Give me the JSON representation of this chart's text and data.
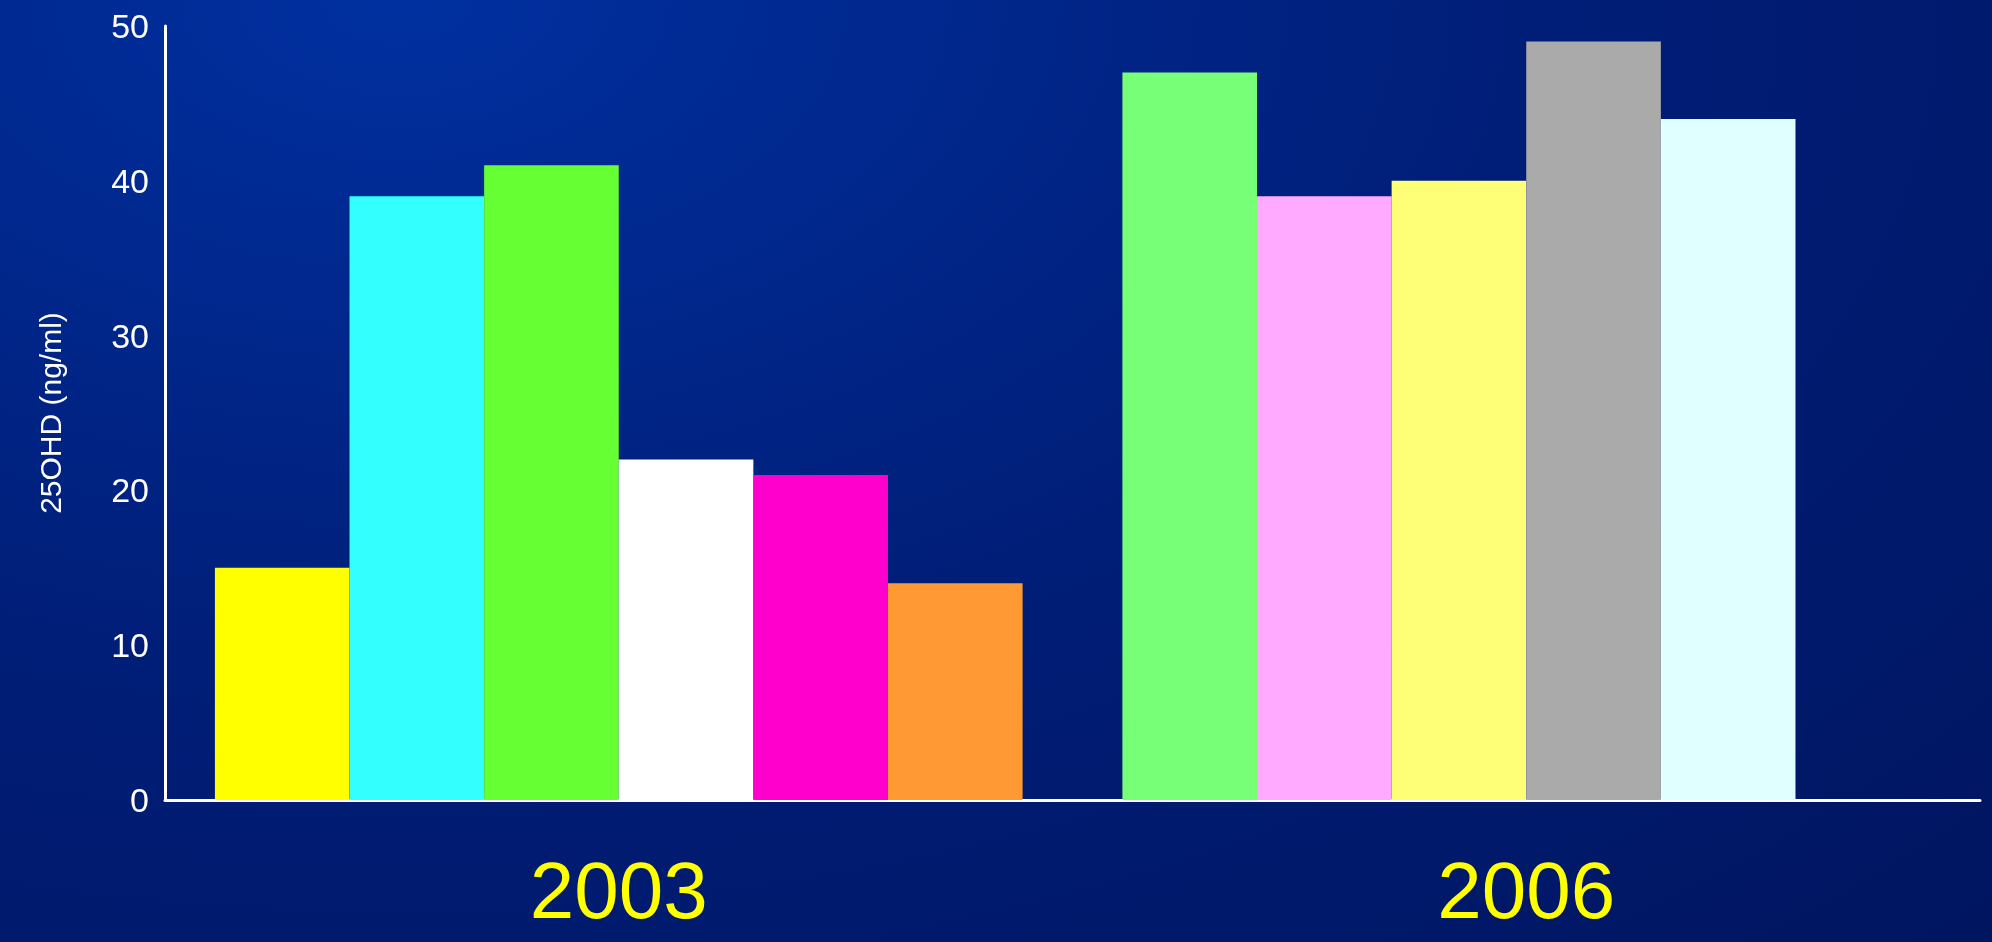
{
  "chart_data": {
    "type": "bar",
    "ylabel": "25OHD (ng/ml)",
    "categories": [
      "2003",
      "2006"
    ],
    "series": [
      {
        "colors": [
          "#ffff00",
          "#77ff77"
        ],
        "values": [
          15,
          47
        ]
      },
      {
        "colors": [
          "#33ffff",
          "#ffaaff"
        ],
        "values": [
          39,
          39
        ]
      },
      {
        "colors": [
          "#66ff33",
          "#ffff77"
        ],
        "values": [
          41,
          40
        ]
      },
      {
        "colors": [
          "#ffffff",
          "#aaaaaa"
        ],
        "values": [
          22,
          49
        ]
      },
      {
        "colors": [
          "#ff00cc",
          "#e0ffff"
        ],
        "values": [
          21,
          44
        ]
      },
      {
        "colors": [
          "#ff9933",
          null
        ],
        "values": [
          14,
          null
        ]
      }
    ],
    "ylim": [
      0,
      50
    ],
    "yticks": [
      0,
      10,
      20,
      30,
      40,
      50
    ]
  }
}
